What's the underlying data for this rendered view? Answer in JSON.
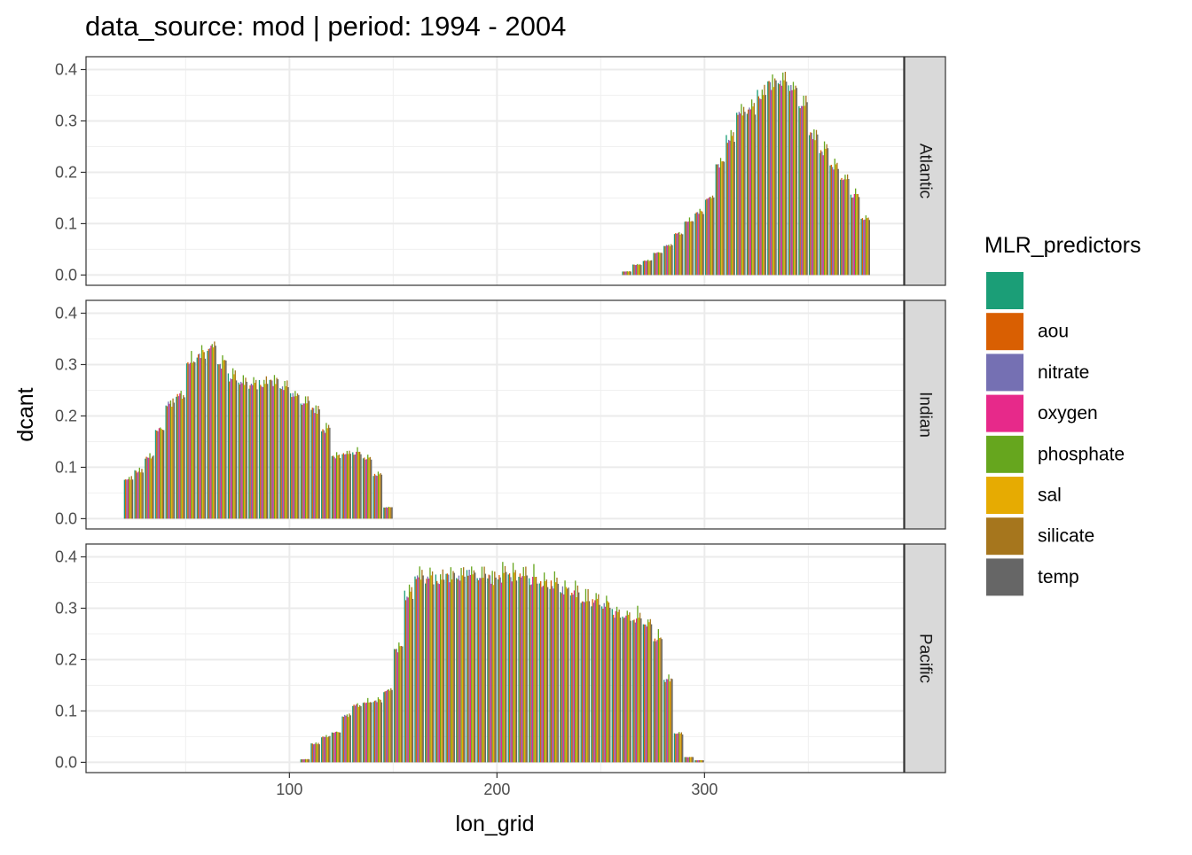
{
  "chart_data": {
    "type": "bar",
    "title": "data_source: mod | period: 1994 - 2004",
    "xlabel": "lon_grid",
    "ylabel": "dcant",
    "xlim": [
      2,
      396
    ],
    "ylim": [
      -0.02,
      0.425
    ],
    "x_ticks": [
      100,
      200,
      300
    ],
    "x_tick_labels": [
      "100",
      "200",
      "300"
    ],
    "y_ticks": [
      0.0,
      0.1,
      0.2,
      0.3,
      0.4
    ],
    "y_tick_labels": [
      "0.0",
      "0.1",
      "0.2",
      "0.3",
      "0.4"
    ],
    "grid": true,
    "legend": {
      "title": "MLR_predictors",
      "placement": "right",
      "entries": [
        {
          "label": "",
          "color": "#1B9E77"
        },
        {
          "label": "aou",
          "color": "#D95F02"
        },
        {
          "label": "nitrate",
          "color": "#7570B3"
        },
        {
          "label": "oxygen",
          "color": "#E7298A"
        },
        {
          "label": "phosphate",
          "color": "#66A61E"
        },
        {
          "label": "sal",
          "color": "#E6AB02"
        },
        {
          "label": "silicate",
          "color": "#A6761D"
        },
        {
          "label": "temp",
          "color": "#666666"
        }
      ]
    },
    "panels": [
      {
        "name": "Atlantic",
        "x": [
          262.5,
          267.5,
          272.5,
          277.5,
          282.5,
          287.5,
          292.5,
          297.5,
          302.5,
          307.5,
          312.5,
          317.5,
          322.5,
          327.5,
          332.5,
          337.5,
          342.5,
          347.5,
          352.5,
          357.5,
          362.5,
          367.5,
          372.5,
          377.5
        ],
        "values": [
          0.007,
          0.02,
          0.028,
          0.043,
          0.057,
          0.08,
          0.103,
          0.122,
          0.148,
          0.215,
          0.265,
          0.31,
          0.32,
          0.35,
          0.37,
          0.375,
          0.36,
          0.33,
          0.27,
          0.24,
          0.21,
          0.185,
          0.155,
          0.11
        ]
      },
      {
        "name": "Indian",
        "x": [
          22.5,
          27.5,
          32.5,
          37.5,
          42.5,
          47.5,
          52.5,
          57.5,
          62.5,
          67.5,
          72.5,
          77.5,
          82.5,
          87.5,
          92.5,
          97.5,
          102.5,
          107.5,
          112.5,
          117.5,
          122.5,
          127.5,
          132.5,
          137.5,
          142.5,
          147.5
        ],
        "values": [
          0.078,
          0.092,
          0.12,
          0.172,
          0.222,
          0.238,
          0.3,
          0.32,
          0.33,
          0.3,
          0.275,
          0.26,
          0.258,
          0.262,
          0.265,
          0.255,
          0.238,
          0.225,
          0.21,
          0.172,
          0.12,
          0.125,
          0.128,
          0.118,
          0.085,
          0.022
        ]
      },
      {
        "name": "Pacific",
        "x": [
          107.5,
          112.5,
          117.5,
          122.5,
          127.5,
          132.5,
          137.5,
          142.5,
          147.5,
          152.5,
          157.5,
          162.5,
          167.5,
          172.5,
          177.5,
          182.5,
          187.5,
          192.5,
          197.5,
          202.5,
          207.5,
          212.5,
          217.5,
          222.5,
          227.5,
          232.5,
          237.5,
          242.5,
          247.5,
          252.5,
          257.5,
          262.5,
          267.5,
          272.5,
          277.5,
          282.5,
          287.5,
          292.5,
          297.5
        ],
        "values": [
          0.006,
          0.036,
          0.05,
          0.058,
          0.09,
          0.11,
          0.115,
          0.12,
          0.138,
          0.22,
          0.325,
          0.355,
          0.355,
          0.355,
          0.36,
          0.36,
          0.365,
          0.36,
          0.355,
          0.36,
          0.36,
          0.36,
          0.355,
          0.35,
          0.345,
          0.335,
          0.325,
          0.32,
          0.31,
          0.305,
          0.29,
          0.28,
          0.28,
          0.27,
          0.24,
          0.16,
          0.055,
          0.01,
          0.004
        ]
      }
    ]
  }
}
